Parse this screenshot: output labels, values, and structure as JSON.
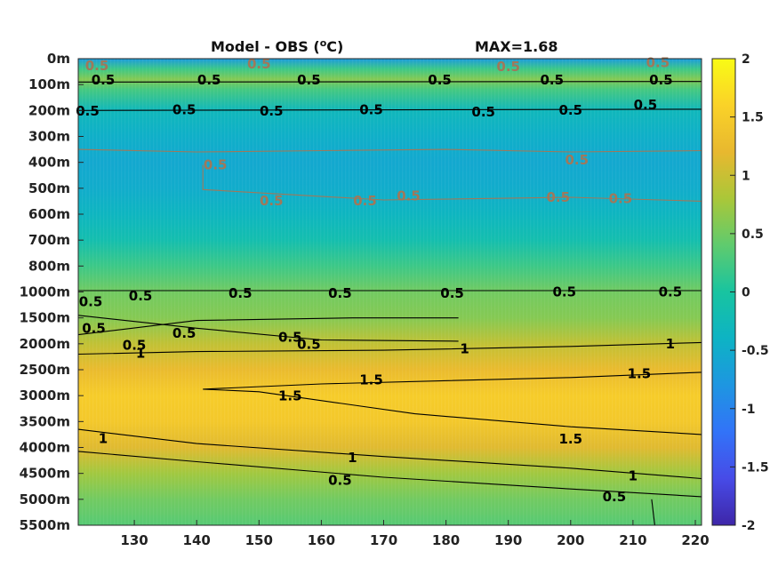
{
  "chart_data": {
    "type": "heatmap",
    "title": "Model - OBS (",
    "title_unit_sup": "o",
    "title_unit_suffix": "C)",
    "max_label": "MAX=1.68",
    "x_ticks": [
      "130",
      "140",
      "150",
      "160",
      "170",
      "180",
      "190",
      "200",
      "210",
      "220"
    ],
    "x_tick_values": [
      130,
      140,
      150,
      160,
      170,
      180,
      190,
      200,
      210,
      220
    ],
    "xlim": [
      121,
      221
    ],
    "y_ticks": [
      "0m",
      "100m",
      "200m",
      "300m",
      "400m",
      "500m",
      "600m",
      "700m",
      "800m",
      "1000m",
      "1500m",
      "2000m",
      "2500m",
      "3000m",
      "3500m",
      "4000m",
      "4500m",
      "5000m",
      "5500m"
    ],
    "colorbar": {
      "ticks": [
        "2",
        "1.5",
        "1",
        "0.5",
        "0",
        "-0.5",
        "-1",
        "-1.5",
        "-2"
      ],
      "range": [
        -2,
        2
      ],
      "colormap": "parula"
    },
    "field_profile": [
      {
        "level": 0.0,
        "value": -0.75
      },
      {
        "level": 0.4,
        "value": 0.2
      },
      {
        "level": 0.8,
        "value": 0.6
      },
      {
        "level": 1.2,
        "value": 0.25
      },
      {
        "level": 2.0,
        "value": -0.3
      },
      {
        "level": 3.0,
        "value": -0.45
      },
      {
        "level": 4.0,
        "value": -0.55
      },
      {
        "level": 5.0,
        "value": -0.5
      },
      {
        "level": 6.0,
        "value": -0.35
      },
      {
        "level": 7.0,
        "value": -0.15
      },
      {
        "level": 8.0,
        "value": 0.2
      },
      {
        "level": 9.0,
        "value": 0.5
      },
      {
        "level": 10.0,
        "value": 0.6
      },
      {
        "level": 11.0,
        "value": 0.95
      },
      {
        "level": 12.0,
        "value": 1.25
      },
      {
        "level": 13.0,
        "value": 1.5
      },
      {
        "level": 14.0,
        "value": 1.45
      },
      {
        "level": 15.0,
        "value": 1.15
      },
      {
        "level": 16.0,
        "value": 0.75
      },
      {
        "level": 17.0,
        "value": 0.5
      },
      {
        "level": 18.0,
        "value": 0.35
      }
    ],
    "contour_labels": [
      {
        "text": "0.5",
        "x": 125,
        "level": 0.82,
        "color": "black"
      },
      {
        "text": "0.5",
        "x": 142,
        "level": 0.82,
        "color": "black"
      },
      {
        "text": "0.5",
        "x": 158,
        "level": 0.82,
        "color": "black"
      },
      {
        "text": "0.5",
        "x": 179,
        "level": 0.82,
        "color": "black"
      },
      {
        "text": "0.5",
        "x": 197,
        "level": 0.82,
        "color": "black"
      },
      {
        "text": "0.5",
        "x": 214.5,
        "level": 0.82,
        "color": "black"
      },
      {
        "text": "0.5",
        "x": 122.5,
        "level": 2.02,
        "color": "black"
      },
      {
        "text": "0.5",
        "x": 138,
        "level": 1.97,
        "color": "black"
      },
      {
        "text": "0.5",
        "x": 152,
        "level": 2.02,
        "color": "black"
      },
      {
        "text": "0.5",
        "x": 168,
        "level": 1.97,
        "color": "black"
      },
      {
        "text": "0.5",
        "x": 186,
        "level": 2.05,
        "color": "black"
      },
      {
        "text": "0.5",
        "x": 200,
        "level": 1.98,
        "color": "black"
      },
      {
        "text": "0.5",
        "x": 212,
        "level": 1.78,
        "color": "black"
      },
      {
        "text": "0.5",
        "x": 124,
        "level": 0.28,
        "color": "#a0785a"
      },
      {
        "text": "0.5",
        "x": 150,
        "level": 0.2,
        "color": "#a0785a"
      },
      {
        "text": "0.5",
        "x": 190,
        "level": 0.3,
        "color": "#a0785a"
      },
      {
        "text": "0.5",
        "x": 214,
        "level": 0.15,
        "color": "#a0785a"
      },
      {
        "text": "0.5",
        "x": 143,
        "level": 4.1,
        "color": "#a0785a"
      },
      {
        "text": "0.5",
        "x": 152,
        "level": 5.48,
        "color": "#a0785a"
      },
      {
        "text": "0.5",
        "x": 167,
        "level": 5.48,
        "color": "#a0785a"
      },
      {
        "text": "0.5",
        "x": 174,
        "level": 5.3,
        "color": "#a0785a"
      },
      {
        "text": "0.5",
        "x": 198,
        "level": 5.35,
        "color": "#a0785a"
      },
      {
        "text": "0.5",
        "x": 208,
        "level": 5.4,
        "color": "#a0785a"
      },
      {
        "text": "0.5",
        "x": 201,
        "level": 3.9,
        "color": "#a0785a"
      },
      {
        "text": "0.5",
        "x": 123,
        "level": 9.38,
        "color": "black"
      },
      {
        "text": "0.5",
        "x": 131,
        "level": 9.15,
        "color": "black"
      },
      {
        "text": "0.5",
        "x": 147,
        "level": 9.05,
        "color": "black"
      },
      {
        "text": "0.5",
        "x": 163,
        "level": 9.05,
        "color": "black"
      },
      {
        "text": "0.5",
        "x": 181,
        "level": 9.05,
        "color": "black"
      },
      {
        "text": "0.5",
        "x": 199,
        "level": 9.0,
        "color": "black"
      },
      {
        "text": "0.5",
        "x": 216,
        "level": 9.0,
        "color": "black"
      },
      {
        "text": "0.5",
        "x": 123.5,
        "level": 10.4,
        "color": "black"
      },
      {
        "text": "0.5",
        "x": 138,
        "level": 10.6,
        "color": "black"
      },
      {
        "text": "0.5",
        "x": 155,
        "level": 10.75,
        "color": "black"
      },
      {
        "text": "0.5",
        "x": 130,
        "level": 11.05,
        "color": "black"
      },
      {
        "text": "0.5",
        "x": 158,
        "level": 11.02,
        "color": "black"
      },
      {
        "text": "1",
        "x": 131,
        "level": 11.37,
        "color": "black"
      },
      {
        "text": "1",
        "x": 183,
        "level": 11.2,
        "color": "black"
      },
      {
        "text": "1",
        "x": 216,
        "level": 11.0,
        "color": "black"
      },
      {
        "text": "1.5",
        "x": 168,
        "level": 12.4,
        "color": "black"
      },
      {
        "text": "1.5",
        "x": 155,
        "level": 13.02,
        "color": "black"
      },
      {
        "text": "1.5",
        "x": 200,
        "level": 14.68,
        "color": "black"
      },
      {
        "text": "1.5",
        "x": 211,
        "level": 12.15,
        "color": "black"
      },
      {
        "text": "1",
        "x": 125,
        "level": 14.65,
        "color": "black"
      },
      {
        "text": "1",
        "x": 165,
        "level": 15.4,
        "color": "black"
      },
      {
        "text": "1",
        "x": 210,
        "level": 16.1,
        "color": "black"
      },
      {
        "text": "0.5",
        "x": 163,
        "level": 16.27,
        "color": "black"
      },
      {
        "text": "0.5",
        "x": 207,
        "level": 16.9,
        "color": "black"
      }
    ],
    "contour_lines": [
      {
        "color": "black",
        "points": [
          [
            121,
            0.9
          ],
          [
            221,
            0.88
          ]
        ]
      },
      {
        "color": "black",
        "points": [
          [
            121,
            2.0
          ],
          [
            221,
            1.95
          ]
        ]
      },
      {
        "color": "black",
        "points": [
          [
            121,
            8.95
          ],
          [
            221,
            8.95
          ]
        ]
      },
      {
        "color": "black",
        "points": [
          [
            121,
            9.9
          ],
          [
            140,
            10.4
          ],
          [
            160,
            10.85
          ],
          [
            182,
            10.9
          ]
        ]
      },
      {
        "color": "black",
        "points": [
          [
            121,
            10.65
          ],
          [
            140,
            10.1
          ],
          [
            165,
            10.0
          ],
          [
            182,
            10.0
          ]
        ]
      },
      {
        "color": "black",
        "points": [
          [
            121,
            11.4
          ],
          [
            140,
            11.3
          ],
          [
            170,
            11.25
          ],
          [
            200,
            11.1
          ],
          [
            221,
            10.95
          ]
        ]
      },
      {
        "color": "black",
        "points": [
          [
            221,
            12.1
          ],
          [
            200,
            12.3
          ],
          [
            160,
            12.55
          ],
          [
            141,
            12.75
          ],
          [
            150,
            12.85
          ],
          [
            175,
            13.7
          ],
          [
            200,
            14.2
          ],
          [
            221,
            14.5
          ]
        ]
      },
      {
        "color": "black",
        "points": [
          [
            121,
            14.3
          ],
          [
            140,
            14.85
          ],
          [
            170,
            15.35
          ],
          [
            200,
            15.8
          ],
          [
            221,
            16.2
          ]
        ]
      },
      {
        "color": "black",
        "points": [
          [
            121,
            15.15
          ],
          [
            140,
            15.55
          ],
          [
            170,
            16.15
          ],
          [
            200,
            16.6
          ],
          [
            221,
            16.9
          ]
        ]
      },
      {
        "color": "black",
        "points": [
          [
            213,
            17.0
          ],
          [
            213.5,
            18.0
          ]
        ]
      },
      {
        "color": "#a0785a",
        "points": [
          [
            121,
            3.5
          ],
          [
            140,
            3.6
          ],
          [
            160,
            3.55
          ],
          [
            180,
            3.5
          ],
          [
            200,
            3.6
          ],
          [
            221,
            3.55
          ]
        ]
      },
      {
        "color": "#a0785a",
        "points": [
          [
            141,
            4.1
          ],
          [
            141,
            5.05
          ],
          [
            170,
            5.45
          ],
          [
            200,
            5.35
          ],
          [
            221,
            5.5
          ]
        ]
      }
    ]
  }
}
